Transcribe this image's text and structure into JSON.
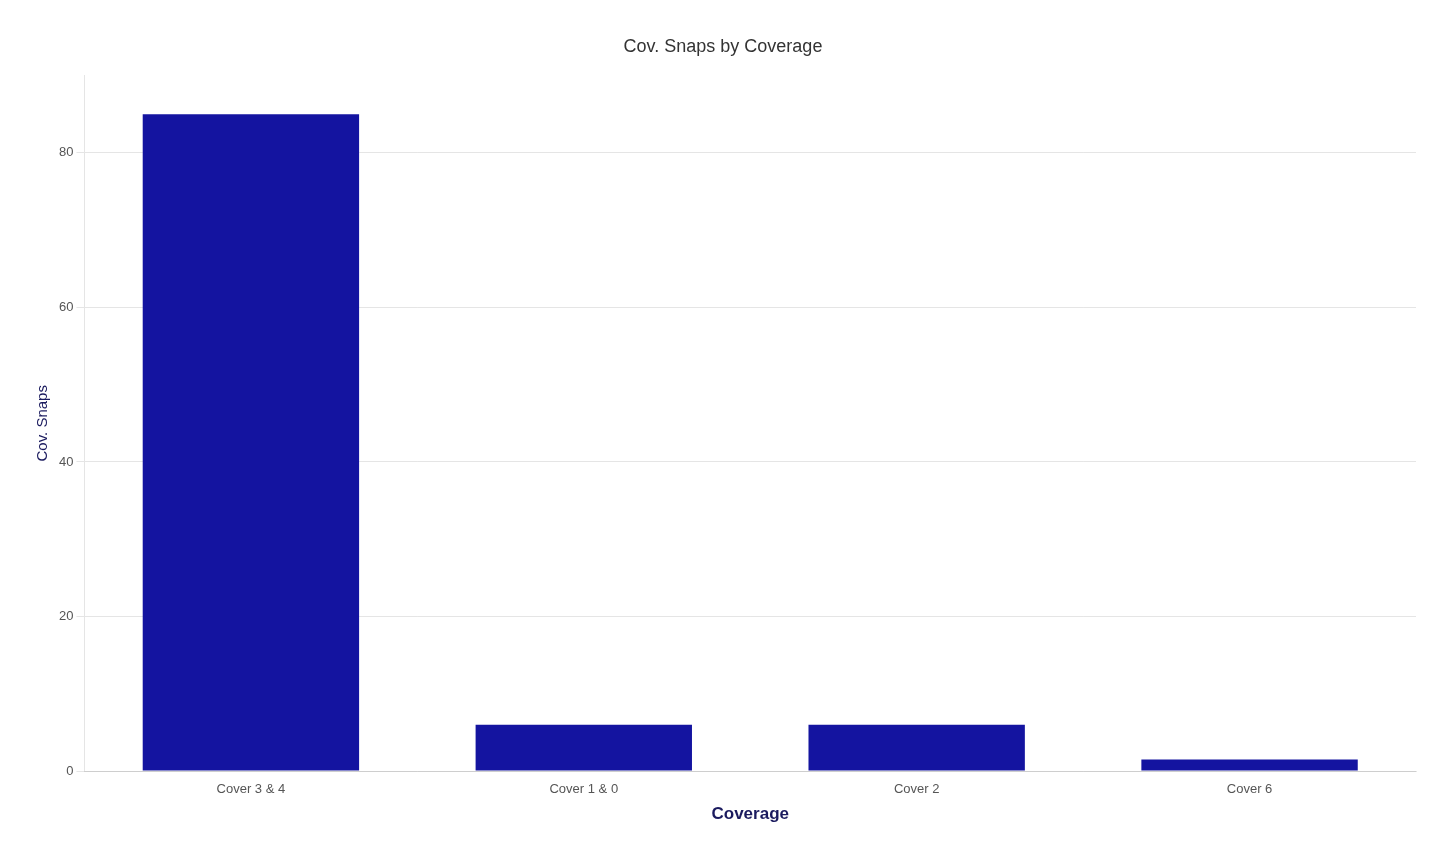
{
  "chart_data": {
    "type": "bar",
    "title": "Cov. Snaps by Coverage",
    "categories": [
      "Cover 3 & 4",
      "Cover 1 & 0",
      "Cover 2",
      "Cover 6"
    ],
    "values": [
      85,
      6,
      6,
      1.5
    ],
    "color": "#1414A0",
    "xlabel": "Coverage",
    "ylabel": "Cov. Snaps",
    "ylim": [
      0,
      90
    ],
    "yticks": [
      0,
      20,
      40,
      60,
      80
    ],
    "grid": true
  }
}
